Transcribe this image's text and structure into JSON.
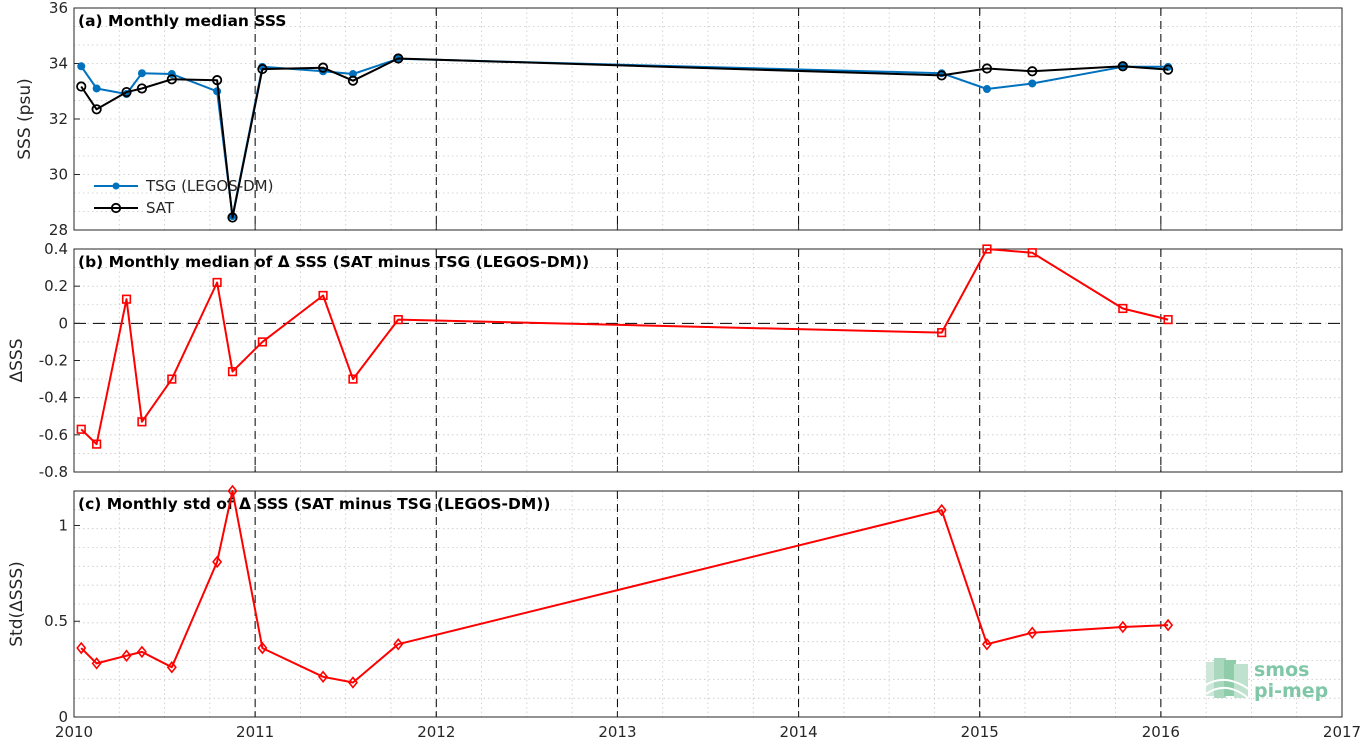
{
  "chart_data": [
    {
      "id": "a",
      "type": "line",
      "title": "(a) Monthly median SSS",
      "ylabel": "SSS (psu)",
      "xlim": [
        2010,
        2017
      ],
      "ylim": [
        28,
        36
      ],
      "yticks": [
        28,
        30,
        32,
        34,
        36
      ],
      "x_grid_dashed": [
        2011,
        2012,
        2013,
        2014,
        2015,
        2016
      ],
      "legend_position": "left",
      "series": [
        {
          "name": "TSG (LEGOS-DM)",
          "color": "#0072BD",
          "marker": "dot",
          "x": [
            2010.04,
            2010.125,
            2010.29,
            2010.375,
            2010.54,
            2010.79,
            2010.875,
            2011.04,
            2011.375,
            2011.54,
            2011.79,
            2014.79,
            2015.04,
            2015.29,
            2015.79,
            2016.04
          ],
          "y": [
            33.9,
            33.1,
            32.9,
            33.65,
            33.62,
            33.0,
            28.5,
            33.88,
            33.72,
            33.62,
            34.17,
            33.65,
            33.08,
            33.28,
            33.88,
            33.88
          ]
        },
        {
          "name": "SAT",
          "color": "#000000",
          "marker": "circle",
          "x": [
            2010.04,
            2010.125,
            2010.29,
            2010.375,
            2010.54,
            2010.79,
            2010.875,
            2011.04,
            2011.375,
            2011.54,
            2011.79,
            2014.79,
            2015.04,
            2015.29,
            2015.79,
            2016.04
          ],
          "y": [
            33.17,
            32.35,
            32.97,
            33.1,
            33.43,
            33.4,
            28.45,
            33.8,
            33.85,
            33.38,
            34.18,
            33.57,
            33.82,
            33.72,
            33.9,
            33.78
          ]
        }
      ]
    },
    {
      "id": "b",
      "type": "line",
      "title": "(b) Monthly median of Δ SSS (SAT minus TSG (LEGOS-DM))",
      "ylabel": "ΔSSS",
      "xlim": [
        2010,
        2017
      ],
      "ylim": [
        -0.8,
        0.4
      ],
      "yticks": [
        -0.8,
        -0.6,
        -0.4,
        -0.2,
        0,
        0.2,
        0.4
      ],
      "zero_line": "dashed",
      "x_grid_dashed": [
        2011,
        2012,
        2013,
        2014,
        2015,
        2016
      ],
      "series": [
        {
          "name": "",
          "color": "#FF0000",
          "marker": "square",
          "x": [
            2010.04,
            2010.125,
            2010.29,
            2010.375,
            2010.54,
            2010.79,
            2010.875,
            2011.04,
            2011.375,
            2011.54,
            2011.79,
            2014.79,
            2015.04,
            2015.29,
            2015.79,
            2016.04
          ],
          "y": [
            -0.57,
            -0.65,
            0.13,
            -0.53,
            -0.3,
            0.22,
            -0.26,
            -0.1,
            0.15,
            -0.3,
            0.02,
            -0.05,
            0.4,
            0.38,
            0.08,
            0.02
          ]
        }
      ]
    },
    {
      "id": "c",
      "type": "line",
      "title": "(c) Monthly std of Δ SSS (SAT minus TSG (LEGOS-DM))",
      "ylabel": "Std(ΔSSS)",
      "xlim": [
        2010,
        2017
      ],
      "ylim": [
        0,
        1.18
      ],
      "yticks": [
        0,
        0.5,
        1
      ],
      "xticks": [
        2010,
        2011,
        2012,
        2013,
        2014,
        2015,
        2016,
        2017
      ],
      "x_grid_dashed": [
        2011,
        2012,
        2013,
        2014,
        2015,
        2016
      ],
      "series": [
        {
          "name": "",
          "color": "#FF0000",
          "marker": "diamond",
          "x": [
            2010.04,
            2010.125,
            2010.29,
            2010.375,
            2010.54,
            2010.79,
            2010.875,
            2011.04,
            2011.375,
            2011.54,
            2011.79,
            2014.79,
            2015.04,
            2015.29,
            2015.79,
            2016.04
          ],
          "y": [
            0.36,
            0.28,
            0.32,
            0.34,
            0.26,
            0.81,
            1.18,
            0.36,
            0.21,
            0.18,
            0.38,
            1.08,
            0.38,
            0.44,
            0.47,
            0.48
          ]
        }
      ]
    }
  ],
  "logo": {
    "line1": "smos",
    "line2": "pi-mep"
  }
}
